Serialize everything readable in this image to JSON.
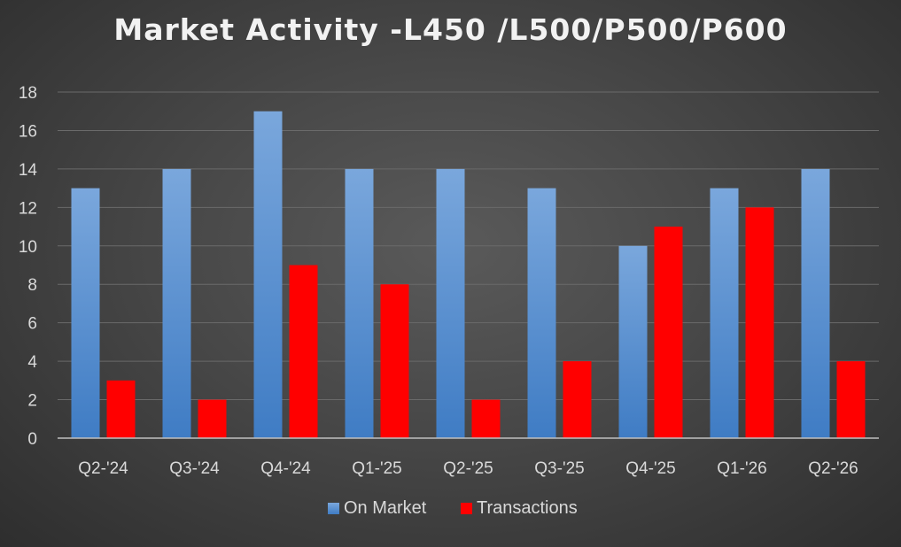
{
  "chart_data": {
    "type": "bar",
    "title": "Market Activity -L450 /L500/P500/P600",
    "categories": [
      "Q2-'24",
      "Q3-'24",
      "Q4-'24",
      "Q1-'25",
      "Q2-'25",
      "Q3-'25",
      "Q4-'25",
      "Q1-'26",
      "Q2-'26"
    ],
    "series": [
      {
        "name": "On Market",
        "values": [
          13,
          14,
          17,
          14,
          14,
          13,
          10,
          13,
          14
        ]
      },
      {
        "name": "Transactions",
        "values": [
          3,
          2,
          9,
          8,
          2,
          4,
          11,
          12,
          4
        ]
      }
    ],
    "ylim": [
      0,
      18
    ],
    "yticks": [
      0,
      2,
      4,
      6,
      8,
      10,
      12,
      14,
      16,
      18
    ],
    "grid": true,
    "legend": "bottom",
    "colors": {
      "on_market_top": "#7aa7dc",
      "on_market_bottom": "#3f7cc4",
      "transactions": "#ff0000",
      "gridline": "#6a6a6a",
      "axis": "#bfbfbf"
    }
  }
}
